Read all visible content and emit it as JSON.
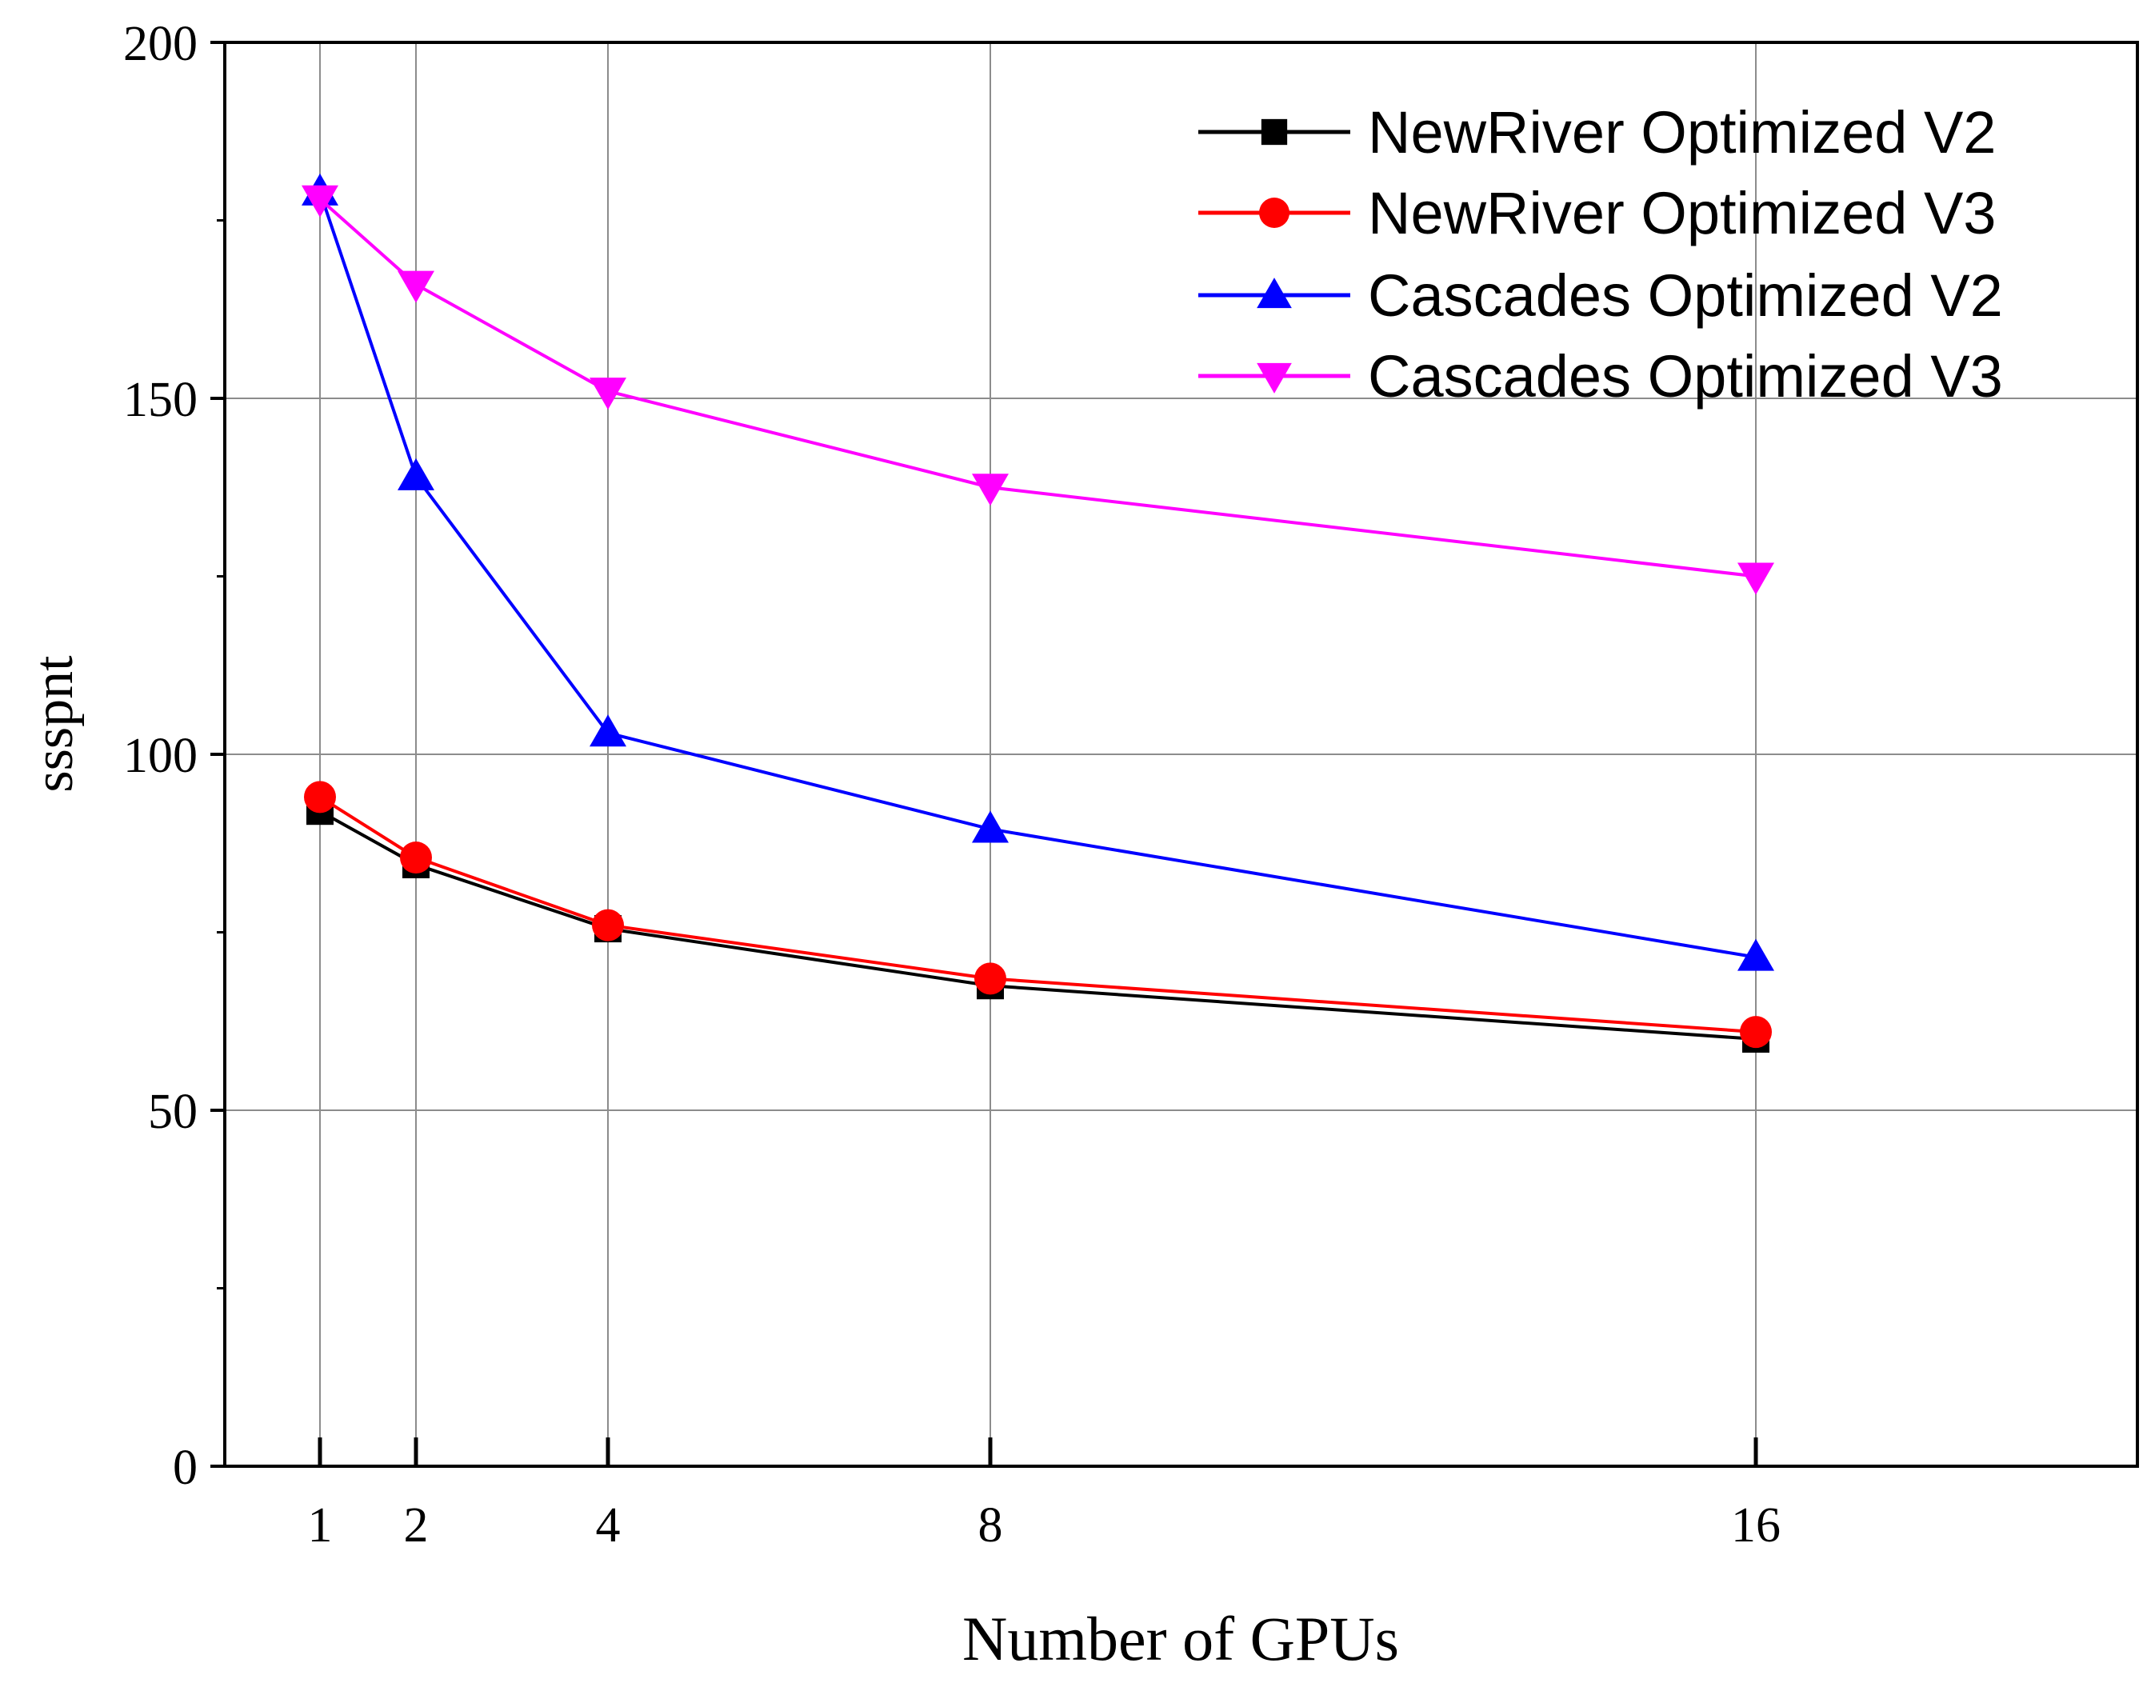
{
  "chart_data": {
    "type": "line",
    "title": "",
    "xlabel": "Number of GPUs",
    "ylabel": "ssspnt",
    "x": [
      1,
      2,
      4,
      8,
      16
    ],
    "x_tick_labels": [
      "1",
      "2",
      "4",
      "8",
      "16"
    ],
    "y_tick_labels": [
      "0",
      "50",
      "100",
      "150",
      "200"
    ],
    "y_ticks": [
      0,
      50,
      100,
      150,
      200
    ],
    "y_minor_ticks": [
      25,
      75,
      125,
      175
    ],
    "ylim": [
      0,
      200
    ],
    "grid": true,
    "legend_position": "top-right",
    "series": [
      {
        "name": "NewRiver Optimized V2",
        "color": "#000000",
        "marker": "square",
        "values": [
          92,
          84.5,
          75.5,
          67.5,
          60
        ]
      },
      {
        "name": "NewRiver Optimized V3",
        "color": "#ff0000",
        "marker": "circle",
        "values": [
          94,
          85.5,
          76,
          68.5,
          61
        ]
      },
      {
        "name": "Cascades Optimized V2",
        "color": "#0000ff",
        "marker": "triangle-up",
        "values": [
          179,
          139,
          103,
          89.5,
          71.5
        ]
      },
      {
        "name": "Cascades Optimized V3",
        "color": "#ff00ff",
        "marker": "triangle-down",
        "values": [
          178,
          166,
          151,
          137.5,
          125
        ]
      }
    ]
  }
}
